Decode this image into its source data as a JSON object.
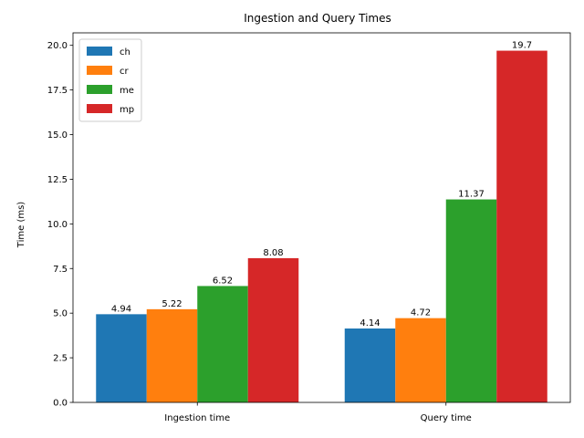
{
  "chart_data": {
    "type": "bar",
    "title": "Ingestion and Query Times",
    "xlabel": "",
    "ylabel": "Time (ms)",
    "categories": [
      "Ingestion time",
      "Query time"
    ],
    "series": [
      {
        "name": "ch",
        "color": "#1f77b4",
        "values": [
          4.94,
          4.14
        ]
      },
      {
        "name": "cr",
        "color": "#ff7f0e",
        "values": [
          5.22,
          4.72
        ]
      },
      {
        "name": "me",
        "color": "#2ca02c",
        "values": [
          6.52,
          11.37
        ]
      },
      {
        "name": "mp",
        "color": "#d62728",
        "values": [
          8.08,
          19.7
        ]
      }
    ],
    "data_labels": [
      [
        "4.94",
        "4.14"
      ],
      [
        "5.22",
        "4.72"
      ],
      [
        "6.52",
        "11.37"
      ],
      [
        "8.08",
        "19.7"
      ]
    ],
    "ylim": [
      0,
      20.7
    ],
    "yticks": [
      0.0,
      2.5,
      5.0,
      7.5,
      10.0,
      12.5,
      15.0,
      17.5,
      20.0
    ],
    "ytick_labels": [
      "0.0",
      "2.5",
      "5.0",
      "7.5",
      "10.0",
      "12.5",
      "15.0",
      "17.5",
      "20.0"
    ],
    "grid": false,
    "legend_position": "top-left"
  }
}
